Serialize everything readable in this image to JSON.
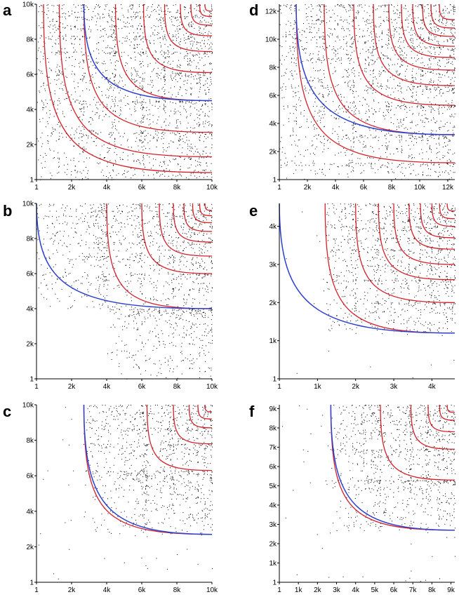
{
  "colors": {
    "dots": "#000000",
    "red_boundary": "#d4202a",
    "blue_boundary": "#2b3fd0",
    "background": "#ffffff"
  },
  "chart_data": [
    {
      "panel": "a",
      "type": "scatter",
      "max": 10000,
      "xticks": [
        "1",
        "2k",
        "4k",
        "6k",
        "8k",
        "10k"
      ],
      "yticks": [
        "1",
        "2k",
        "4k",
        "6k",
        "8k",
        "10k"
      ],
      "blocks": [
        1,
        400,
        1300,
        2700,
        4500,
        6100,
        7300,
        8200,
        8800,
        9300,
        9600,
        10000
      ],
      "blue_boundary": [
        [
          2700,
          10000
        ],
        [
          4500,
          4500
        ]
      ]
    },
    {
      "panel": "b",
      "type": "scatter",
      "max": 10000,
      "xticks": [
        "1",
        "2k",
        "4k",
        "6k",
        "8k",
        "10k"
      ],
      "yticks": [
        "1",
        "2k",
        "4k",
        "6k",
        "8k",
        "10k"
      ],
      "blocks": [
        1,
        4000,
        6000,
        7000,
        7800,
        8400,
        8900,
        9300,
        9600,
        10000
      ],
      "blue_boundary": [
        [
          1,
          10000
        ],
        [
          4000,
          4000
        ]
      ]
    },
    {
      "panel": "c",
      "type": "scatter",
      "max": 10000,
      "xticks": [
        "1",
        "2k",
        "4k",
        "6k",
        "8k",
        "10k"
      ],
      "yticks": [
        "1",
        "2k",
        "4k",
        "6k",
        "8k",
        "10k"
      ],
      "blocks": [
        1,
        2700,
        6300,
        7800,
        8700,
        9200,
        9600,
        10000
      ],
      "blue_boundary": [
        [
          2700,
          10000
        ],
        [
          6300,
          2700
        ]
      ]
    },
    {
      "panel": "d",
      "type": "scatter",
      "max": 12500,
      "xticks": [
        "1",
        "2k",
        "4k",
        "6k",
        "8k",
        "10k",
        "12k"
      ],
      "yticks": [
        "1",
        "2k",
        "4k",
        "6k",
        "8k",
        "10k",
        "12k"
      ],
      "blocks": [
        1,
        1200,
        3200,
        5300,
        6700,
        7800,
        8700,
        9500,
        10200,
        10800,
        11400,
        12500
      ],
      "blue_boundary": [
        [
          1200,
          12500
        ],
        [
          3200,
          3200
        ]
      ]
    },
    {
      "panel": "e",
      "type": "scatter",
      "max": 4600,
      "xticks": [
        "1",
        "1k",
        "2k",
        "3k",
        "4k"
      ],
      "yticks": [
        "1",
        "1k",
        "2k",
        "3k",
        "4k"
      ],
      "blocks": [
        1,
        1200,
        2000,
        2600,
        3000,
        3400,
        3700,
        4000,
        4200,
        4400,
        4600
      ],
      "blue_boundary": [
        [
          1,
          4600
        ],
        [
          1200,
          1200
        ]
      ]
    },
    {
      "panel": "f",
      "type": "scatter",
      "max": 9200,
      "xticks": [
        "1",
        "1k",
        "2k",
        "3k",
        "4k",
        "5k",
        "6k",
        "7k",
        "8k",
        "9k"
      ],
      "yticks": [
        "1",
        "1k",
        "2k",
        "3k",
        "4k",
        "5k",
        "6k",
        "7k",
        "8k",
        "9k"
      ],
      "blocks": [
        1,
        2700,
        5300,
        6900,
        7800,
        8400,
        8800,
        9200
      ],
      "blue_boundary": [
        [
          2700,
          9200
        ],
        [
          5300,
          2700
        ]
      ]
    }
  ]
}
